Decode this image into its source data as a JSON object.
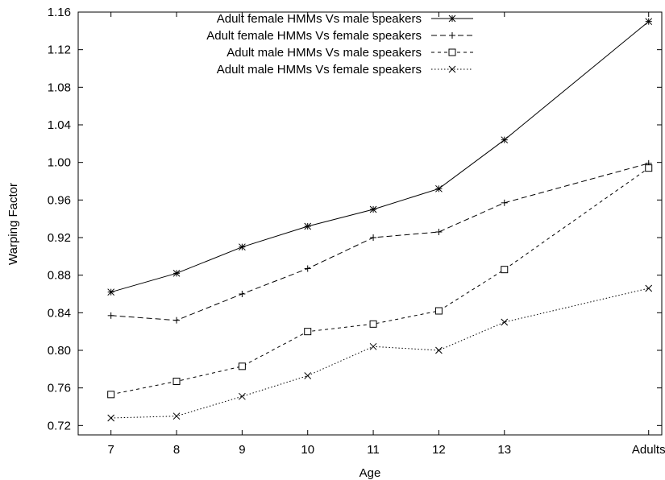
{
  "chart_data": {
    "type": "line",
    "title": "",
    "xlabel": "Age",
    "ylabel": "Warping Factor",
    "categories": [
      "7",
      "8",
      "9",
      "10",
      "11",
      "12",
      "13",
      "Adults"
    ],
    "x": [
      7,
      8,
      9,
      10,
      11,
      12,
      13,
      15.2
    ],
    "xlim": [
      6.5,
      15.4
    ],
    "ylim": [
      0.71,
      1.16
    ],
    "yticks": [
      0.72,
      0.76,
      0.8,
      0.84,
      0.88,
      0.92,
      0.96,
      1.0,
      1.04,
      1.08,
      1.12,
      1.16
    ],
    "ytick_labels": [
      "0.72",
      "0.76",
      "0.80",
      "0.84",
      "0.88",
      "0.92",
      "0.96",
      "1.00",
      "1.04",
      "1.08",
      "1.12",
      "1.16"
    ],
    "grid": false,
    "legend_position": "top-right",
    "series": [
      {
        "name": "Adult female HMMs Vs male speakers",
        "values": [
          0.862,
          0.882,
          0.91,
          0.932,
          0.95,
          0.972,
          1.024,
          1.15
        ],
        "marker": "asterisk",
        "line_style": "solid"
      },
      {
        "name": "Adult female HMMs Vs female speakers",
        "values": [
          0.837,
          0.832,
          0.86,
          0.887,
          0.92,
          0.926,
          0.957,
          0.999
        ],
        "marker": "plus",
        "line_style": "dashed"
      },
      {
        "name": "Adult male HMMs Vs male speakers",
        "values": [
          0.753,
          0.767,
          0.783,
          0.82,
          0.828,
          0.842,
          0.886,
          0.994
        ],
        "marker": "square",
        "line_style": "short-dashed"
      },
      {
        "name": "Adult male HMMs Vs female speakers",
        "values": [
          0.728,
          0.73,
          0.751,
          0.773,
          0.804,
          0.8,
          0.83,
          0.866
        ],
        "marker": "cross",
        "line_style": "dotted"
      }
    ]
  }
}
